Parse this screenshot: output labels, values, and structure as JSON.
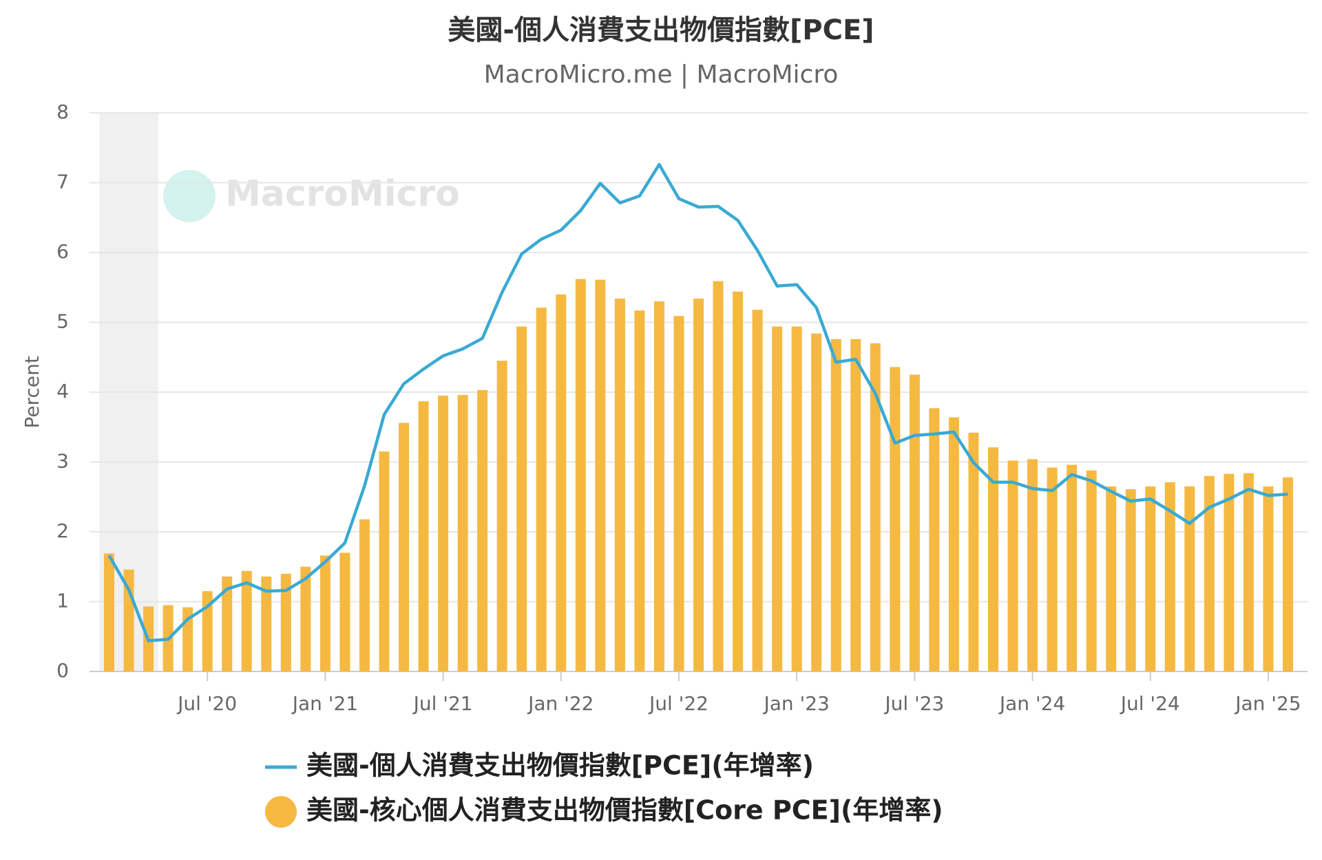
{
  "chart_data": {
    "type": "bar_line",
    "title": "美國-個人消費支出物價指數[PCE]",
    "subtitle": "MacroMicro.me | MacroMicro",
    "watermark": "MacroMicro",
    "y_label": "Percent",
    "x": [
      "2020-02",
      "2020-03",
      "2020-04",
      "2020-05",
      "2020-06",
      "2020-07",
      "2020-08",
      "2020-09",
      "2020-10",
      "2020-11",
      "2020-12",
      "2021-01",
      "2021-02",
      "2021-03",
      "2021-04",
      "2021-05",
      "2021-06",
      "2021-07",
      "2021-08",
      "2021-09",
      "2021-10",
      "2021-11",
      "2021-12",
      "2022-01",
      "2022-02",
      "2022-03",
      "2022-04",
      "2022-05",
      "2022-06",
      "2022-07",
      "2022-08",
      "2022-09",
      "2022-10",
      "2022-11",
      "2022-12",
      "2023-01",
      "2023-02",
      "2023-03",
      "2023-04",
      "2023-05",
      "2023-06",
      "2023-07",
      "2023-08",
      "2023-09",
      "2023-10",
      "2023-11",
      "2023-12",
      "2024-01",
      "2024-02",
      "2024-03",
      "2024-04",
      "2024-05",
      "2024-06",
      "2024-07",
      "2024-08",
      "2024-09",
      "2024-10",
      "2024-11",
      "2024-12",
      "2025-01",
      "2025-02"
    ],
    "series": [
      {
        "name": "美國-個人消費支出物價指數[PCE](年增率)",
        "type": "line",
        "color": "#3aa9d4",
        "values": [
          1.66,
          1.17,
          0.44,
          0.46,
          0.75,
          0.93,
          1.18,
          1.27,
          1.15,
          1.16,
          1.33,
          1.57,
          1.84,
          2.66,
          3.68,
          4.12,
          4.33,
          4.52,
          4.62,
          4.77,
          5.43,
          5.98,
          6.19,
          6.32,
          6.6,
          6.99,
          6.71,
          6.81,
          7.26,
          6.77,
          6.65,
          6.66,
          6.46,
          6.03,
          5.52,
          5.54,
          5.21,
          4.43,
          4.47,
          3.98,
          3.27,
          3.38,
          3.4,
          3.43,
          2.99,
          2.71,
          2.71,
          2.62,
          2.59,
          2.82,
          2.73,
          2.58,
          2.44,
          2.47,
          2.3,
          2.12,
          2.35,
          2.47,
          2.61,
          2.52,
          2.54
        ]
      },
      {
        "name": "美國-核心個人消費支出物價指數[Core PCE](年增率)",
        "type": "bar",
        "color": "#f5b942",
        "values": [
          1.69,
          1.46,
          0.93,
          0.95,
          0.92,
          1.15,
          1.36,
          1.44,
          1.36,
          1.4,
          1.5,
          1.66,
          1.7,
          2.18,
          3.15,
          3.56,
          3.87,
          3.95,
          3.96,
          4.03,
          4.45,
          4.94,
          5.21,
          5.4,
          5.62,
          5.61,
          5.34,
          5.17,
          5.3,
          5.09,
          5.34,
          5.59,
          5.44,
          5.18,
          4.94,
          4.94,
          4.84,
          4.76,
          4.76,
          4.7,
          4.36,
          4.25,
          3.77,
          3.64,
          3.42,
          3.21,
          3.02,
          3.04,
          2.92,
          2.96,
          2.88,
          2.65,
          2.61,
          2.65,
          2.71,
          2.65,
          2.8,
          2.83,
          2.84,
          2.65,
          2.78
        ]
      }
    ],
    "recession": [
      "2020-02",
      "2020-04"
    ],
    "xlim": [
      "2020-01",
      "2025-03"
    ],
    "xticks": [
      {
        "value": "2020-07",
        "label": "Jul '20"
      },
      {
        "value": "2021-01",
        "label": "Jan '21"
      },
      {
        "value": "2021-07",
        "label": "Jul '21"
      },
      {
        "value": "2022-01",
        "label": "Jan '22"
      },
      {
        "value": "2022-07",
        "label": "Jul '22"
      },
      {
        "value": "2023-01",
        "label": "Jan '23"
      },
      {
        "value": "2023-07",
        "label": "Jul '23"
      },
      {
        "value": "2024-01",
        "label": "Jan '24"
      },
      {
        "value": "2024-07",
        "label": "Jul '24"
      },
      {
        "value": "2025-01",
        "label": "Jan '25"
      }
    ],
    "ylim": [
      0,
      8
    ],
    "yticks": [
      0,
      1,
      2,
      3,
      4,
      5,
      6,
      7,
      8
    ],
    "grid": true
  }
}
